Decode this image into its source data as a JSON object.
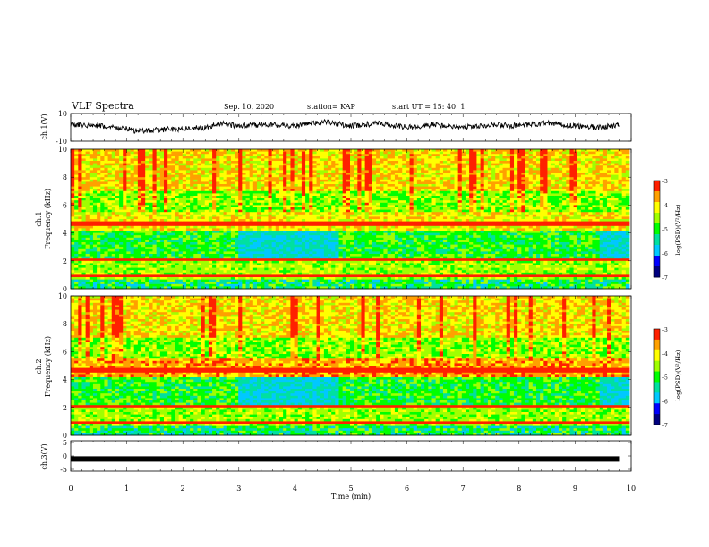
{
  "header": {
    "title": "VLF Spectra",
    "date": "Sep. 10, 2020",
    "station": "station= KAP",
    "start": "start  UT  =   15: 40: 1"
  },
  "colors": {
    "colormap": [
      "#000080",
      "#0000ff",
      "#00c8ff",
      "#00e0a0",
      "#00ff00",
      "#a0ff00",
      "#ffff00",
      "#ffa000",
      "#ff2000",
      "#ffffff"
    ],
    "trace": "#000000"
  },
  "chart_data": [
    {
      "type": "line",
      "name": "ch1-waveform",
      "ylabel": "ch.1(V)",
      "ylim": [
        -10,
        10
      ],
      "yticks": [
        "10",
        "-10"
      ],
      "x": [
        0,
        0.5,
        1,
        1.2,
        1.5,
        2,
        2.5,
        2.6,
        3,
        3.5,
        4,
        4.5,
        5,
        5.5,
        6,
        6.5,
        7,
        7.5,
        8,
        8.5,
        9,
        9.5,
        9.8
      ],
      "values": [
        2,
        1,
        -1,
        -3,
        -2,
        -1,
        0,
        3,
        1,
        2,
        1,
        4,
        1,
        3,
        0,
        2,
        0,
        2,
        1,
        3,
        1,
        0,
        2
      ]
    },
    {
      "type": "heatmap",
      "name": "ch1-spectrogram",
      "ylabel_top": "ch.1",
      "ylabel": "Frequency (kHz)",
      "ylim": [
        0,
        10
      ],
      "yticks": [
        "0",
        "2",
        "4",
        "6",
        "8",
        "10"
      ],
      "colorbar": {
        "label": "log(PSD)(V²/Hz)",
        "ticks": [
          "-3",
          "-4",
          "-5",
          "-6",
          "-7"
        ],
        "range": [
          -7,
          -3
        ]
      }
    },
    {
      "type": "heatmap",
      "name": "ch2-spectrogram",
      "ylabel_top": "ch.2",
      "ylabel": "Frequency (kHz)",
      "ylim": [
        0,
        10
      ],
      "yticks": [
        "0",
        "2",
        "4",
        "6",
        "8",
        "10"
      ],
      "colorbar": {
        "label": "log(PSD)(V²/Hz)",
        "ticks": [
          "-3",
          "-4",
          "-5",
          "-6",
          "-7"
        ],
        "range": [
          -7,
          -3
        ]
      }
    },
    {
      "type": "line",
      "name": "ch3-waveform",
      "ylabel": "ch.3(V)",
      "ylim": [
        -5,
        5
      ],
      "yticks": [
        "5",
        "0",
        "-5"
      ],
      "x": [
        0,
        9.8
      ],
      "values": [
        -1,
        -1
      ]
    }
  ],
  "xaxis": {
    "label": "Time (min)",
    "xlim": [
      0,
      10
    ],
    "ticks": [
      "0",
      "1",
      "2",
      "3",
      "4",
      "5",
      "6",
      "7",
      "8",
      "9",
      "10"
    ]
  }
}
